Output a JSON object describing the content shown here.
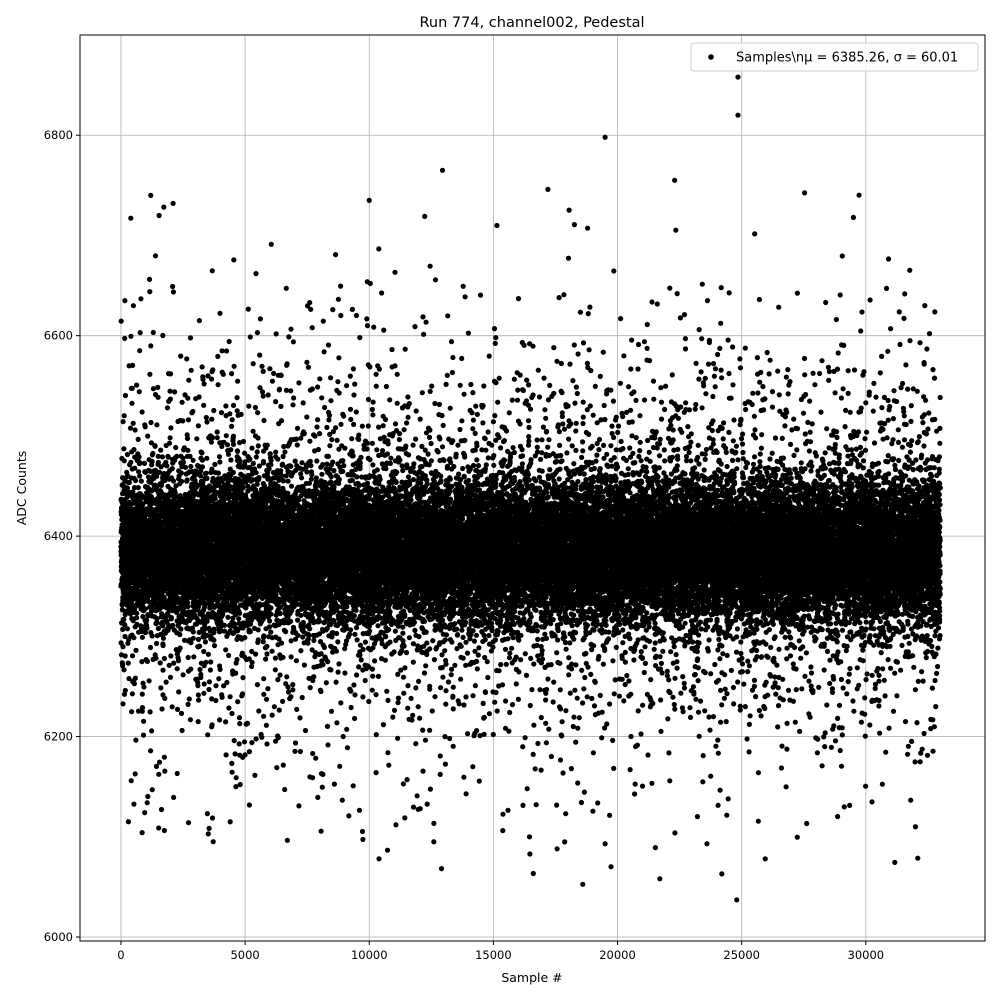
{
  "chart_data": {
    "type": "scatter",
    "title": "Run 774, channel002, Pedestal",
    "xlabel": "Sample #",
    "ylabel": "ADC Counts",
    "xlim": [
      -1650,
      34800
    ],
    "ylim": [
      5996,
      6900
    ],
    "xticks": [
      0,
      5000,
      10000,
      15000,
      20000,
      25000,
      30000
    ],
    "yticks": [
      6000,
      6200,
      6400,
      6600,
      6800
    ],
    "grid": true,
    "legend": {
      "placement": "top-right",
      "label": "Samples\\n$\\mu$ = 6385.26, $\\sigma$ = 60.01",
      "label_display": "Samples\\nμ = 6385.26, σ = 60.01"
    },
    "series": [
      {
        "color": "#000000",
        "marker": "circle",
        "x_range": [
          0,
          33000
        ],
        "mean": 6385.26,
        "sigma": 60.01,
        "notable_points": [
          {
            "x": 24850,
            "y": 6858
          },
          {
            "x": 24850,
            "y": 6820
          },
          {
            "x": 19500,
            "y": 6798
          },
          {
            "x": 12950,
            "y": 6765
          },
          {
            "x": 22300,
            "y": 6755
          },
          {
            "x": 1200,
            "y": 6740
          },
          {
            "x": 2100,
            "y": 6732
          },
          {
            "x": 10000,
            "y": 6735
          },
          {
            "x": 29500,
            "y": 6718
          },
          {
            "x": 12600,
            "y": 6095
          },
          {
            "x": 19500,
            "y": 6093
          },
          {
            "x": 23600,
            "y": 6093
          },
          {
            "x": 24200,
            "y": 6063
          },
          {
            "x": 24800,
            "y": 6037
          },
          {
            "x": 25950,
            "y": 6078
          },
          {
            "x": 4400,
            "y": 6115
          },
          {
            "x": 300,
            "y": 6115
          },
          {
            "x": 32000,
            "y": 6110
          }
        ]
      }
    ]
  }
}
